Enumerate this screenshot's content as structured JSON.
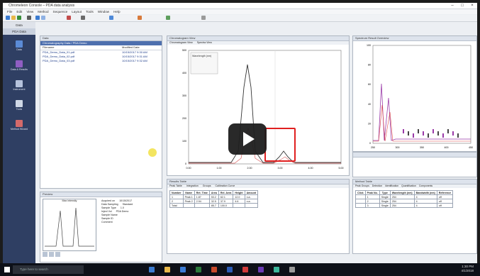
{
  "window": {
    "title": "Chromeleon Console – PDA data analysis"
  },
  "menu": [
    "File",
    "Edit",
    "View",
    "Method",
    "Sequence",
    "Layout",
    "Tools",
    "Window",
    "Help"
  ],
  "navigation": {
    "header": "Data",
    "tab": "PDA Data",
    "items": [
      {
        "label": "Data",
        "icon": "data-icon",
        "color": "#5b8bd6"
      },
      {
        "label": "Data & Results",
        "icon": "results-icon",
        "color": "#8f5ec2"
      },
      {
        "label": "Instrument",
        "icon": "instrument-icon",
        "color": "#b6c3dc"
      },
      {
        "label": "Tools",
        "icon": "tools-icon",
        "color": "#cfd8e6"
      },
      {
        "label": "Method Wizard",
        "icon": "wizard-icon",
        "color": "#d46a6a"
      }
    ]
  },
  "file_panel": {
    "title": "Data",
    "path": "Chromatography Data / PDA Demo",
    "columns": [
      "Filename",
      "Modified Date"
    ],
    "rows": [
      {
        "name": "PDA_Demo_Data_01.pdf",
        "date": "10/15/2017 9:30 AM"
      },
      {
        "name": "PDA_Demo_Data_02.pdf",
        "date": "10/15/2017 9:31 AM"
      },
      {
        "name": "PDA_Demo_Data_03.pdf",
        "date": "10/15/2017 9:32 AM"
      }
    ]
  },
  "preview_panel": {
    "title": "Preview",
    "caption": "Max intensity",
    "info": [
      "Acquired on",
      "Data Sampling",
      "Sample Type",
      "Inject Vol",
      "Sample Name",
      "Sample ID",
      "Comment"
    ],
    "values": [
      "10/15/2017",
      "Standard",
      "1.0",
      "PDA Demo"
    ]
  },
  "chromatogram": {
    "title": "Chromatogram View",
    "tabs": [
      "Chromatogram View",
      "Spectra View"
    ],
    "x_ticks": [
      "0.00",
      "1.00",
      "2.00",
      "3.00",
      "4.00",
      "5.00"
    ],
    "y_ticks": [
      "0",
      "100",
      "200",
      "300",
      "400",
      "500"
    ],
    "legend": "Wavelength (nm)"
  },
  "spectrum": {
    "title": "Spectrum Result Overview",
    "x_ticks": [
      "250",
      "300",
      "350",
      "400",
      "450"
    ],
    "y_ticks": [
      "0",
      "20",
      "40",
      "60",
      "80",
      "100"
    ]
  },
  "peak_table": {
    "title": "Results Table",
    "tabs": [
      "Peak Table",
      "Integration",
      "Groups",
      "Calibration Curve"
    ],
    "columns": [
      "Number",
      "Name",
      "Ret. Time",
      "Area",
      "Rel. Area",
      "Height",
      "Amount"
    ],
    "rows": [
      [
        "1",
        "Peak 1",
        "1.87",
        "53.2",
        "62.1",
        "12.0",
        "n.a."
      ],
      [
        "2",
        "Peak 2",
        "2.94",
        "32.5",
        "37.9",
        "4.6",
        "n.a."
      ],
      [
        "Total",
        "",
        "",
        "85.7",
        "100.0",
        "",
        ""
      ]
    ]
  },
  "method_panel": {
    "title": "Method Table",
    "tabs": [
      "Peak Groups",
      "Detection",
      "Identification",
      "Quantification",
      "Components"
    ],
    "columns": [
      "Click",
      "Peak No.",
      "Type",
      "Wavelength (nm)",
      "Bandwidth (nm)",
      "Reference"
    ],
    "rows": [
      [
        "",
        "1",
        "Single",
        "254",
        "4",
        "off"
      ],
      [
        "",
        "2",
        "Single",
        "254",
        "4",
        "off"
      ],
      [
        "",
        "3",
        "Single",
        "254",
        "4",
        "off"
      ]
    ]
  },
  "status": {
    "left": "PDA Data 1",
    "right": "Ready"
  },
  "taskbar": {
    "search": "Type here to search",
    "time": "1:30 PM",
    "date": "4/1/2018"
  },
  "video": {
    "play_label": "Play video"
  }
}
